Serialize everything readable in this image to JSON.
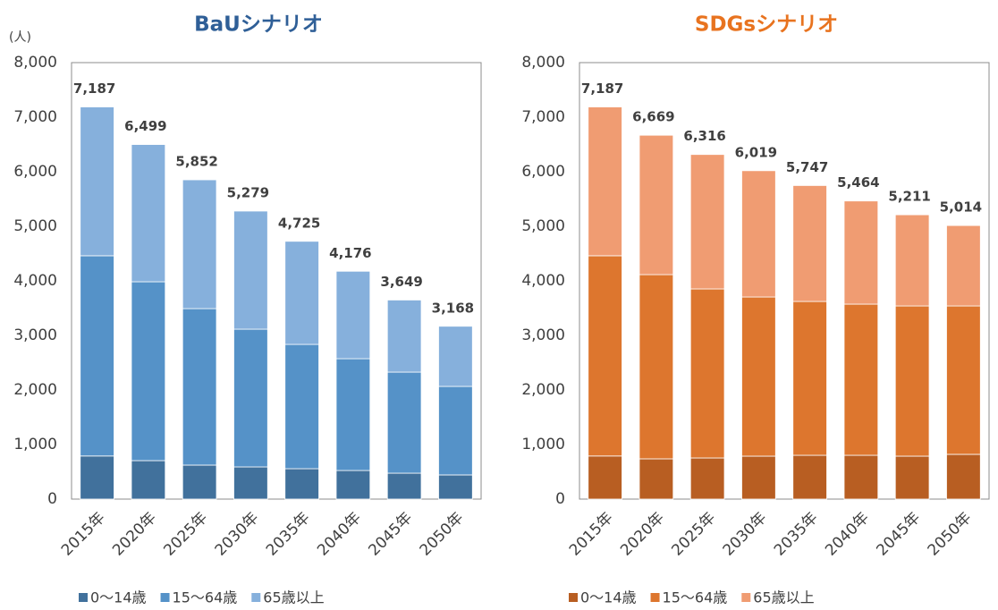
{
  "chart_data": [
    {
      "type": "bar",
      "stacked": true,
      "title": "BaUシナリオ",
      "y_unit": "(人)",
      "categories": [
        "2015年",
        "2020年",
        "2025年",
        "2030年",
        "2035年",
        "2040年",
        "2045年",
        "2050年"
      ],
      "series": [
        {
          "name": "0～14歳",
          "color": "#41719c",
          "values": [
            790,
            705,
            623,
            590,
            557,
            524,
            475,
            443
          ]
        },
        {
          "name": "15～64歳",
          "color": "#5592c8",
          "values": [
            3670,
            3278,
            2868,
            2524,
            2278,
            2049,
            1852,
            1622
          ]
        },
        {
          "name": "65歳以上",
          "color": "#86b0dc",
          "values": [
            2727,
            2516,
            2361,
            2165,
            1890,
            1603,
            1322,
            1103
          ]
        }
      ],
      "totals": [
        {
          "value": 7187,
          "label": "7,187"
        },
        {
          "value": 6499,
          "label": "6,499"
        },
        {
          "value": 5852,
          "label": "5,852"
        },
        {
          "value": 5279,
          "label": "5,279"
        },
        {
          "value": 4725,
          "label": "4,725"
        },
        {
          "value": 4176,
          "label": "4,176"
        },
        {
          "value": 3649,
          "label": "3,649"
        },
        {
          "value": 3168,
          "label": "3,168"
        }
      ],
      "ylim": [
        0,
        8000
      ],
      "yticks": [
        0,
        {
          "value": 1000,
          "label": "1,000"
        },
        {
          "value": 2000,
          "label": "2,000"
        },
        {
          "value": 3000,
          "label": "3,000"
        },
        {
          "value": 4000,
          "label": "4,000"
        },
        {
          "value": 5000,
          "label": "5,000"
        },
        {
          "value": 6000,
          "label": "6,000"
        },
        {
          "value": 7000,
          "label": "7,000"
        },
        {
          "value": 8000,
          "label": "8,000"
        }
      ],
      "title_color": "#2f5f97"
    },
    {
      "type": "bar",
      "stacked": true,
      "title": "SDGsシナリオ",
      "categories": [
        "2015年",
        "2020年",
        "2025年",
        "2030年",
        "2035年",
        "2040年",
        "2045年",
        "2050年"
      ],
      "series": [
        {
          "name": "0～14歳",
          "color": "#b85e22",
          "values": [
            790,
            738,
            754,
            787,
            803,
            803,
            787,
            820
          ]
        },
        {
          "name": "15～64歳",
          "color": "#dd762e",
          "values": [
            3670,
            3376,
            3098,
            2917,
            2819,
            2770,
            2753,
            2720
          ]
        },
        {
          "name": "65歳以上",
          "color": "#f09c72",
          "values": [
            2727,
            2555,
            2464,
            2315,
            2125,
            1891,
            1671,
            1474
          ]
        }
      ],
      "totals": [
        {
          "value": 7187,
          "label": "7,187"
        },
        {
          "value": 6669,
          "label": "6,669"
        },
        {
          "value": 6316,
          "label": "6,316"
        },
        {
          "value": 6019,
          "label": "6,019"
        },
        {
          "value": 5747,
          "label": "5,747"
        },
        {
          "value": 5464,
          "label": "5,464"
        },
        {
          "value": 5211,
          "label": "5,211"
        },
        {
          "value": 5014,
          "label": "5,014"
        }
      ],
      "ylim": [
        0,
        8000
      ],
      "yticks": [
        0,
        {
          "value": 1000,
          "label": "1,000"
        },
        {
          "value": 2000,
          "label": "2,000"
        },
        {
          "value": 3000,
          "label": "3,000"
        },
        {
          "value": 4000,
          "label": "4,000"
        },
        {
          "value": 5000,
          "label": "5,000"
        },
        {
          "value": 6000,
          "label": "6,000"
        },
        {
          "value": 7000,
          "label": "7,000"
        },
        {
          "value": 8000,
          "label": "8,000"
        }
      ],
      "title_color": "#e8731f"
    }
  ]
}
